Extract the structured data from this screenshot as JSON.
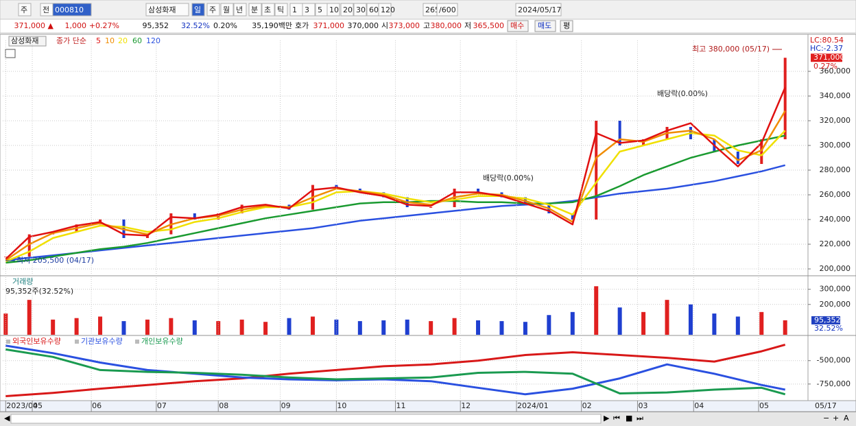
{
  "toolbar": {
    "items": [
      "주",
      "전",
      "000810",
      "삼성화재",
      "일",
      "주",
      "월",
      "년",
      "분",
      "초",
      "틱",
      "1",
      "3",
      "5",
      "10",
      "20",
      "30",
      "60",
      "120",
      "265",
      "/600",
      "2024/05/17"
    ]
  },
  "info_bar": {
    "items": [
      "371,000 ▲",
      "1,000",
      "+0.27%",
      "95,352",
      "32.52%",
      "0.20%",
      "35,190백만",
      "호가",
      "371,000",
      "370,000",
      "시",
      "373,000",
      "고",
      "380,000",
      "저",
      "365,500",
      "매수",
      "매도",
      "평"
    ]
  },
  "chart_data": [
    {
      "type": "line",
      "title": "삼성화재",
      "subtitle": "종가 단순",
      "x": [
        0,
        8,
        16,
        24,
        32,
        40,
        48,
        56,
        64,
        72,
        80,
        88,
        96,
        104,
        112,
        120,
        128,
        136,
        144,
        152,
        160,
        168,
        176,
        184,
        192,
        200,
        208,
        216,
        224,
        232,
        240,
        248,
        256,
        264
      ],
      "values": [
        210000,
        228000,
        230000,
        236000,
        240000,
        225000,
        228000,
        245000,
        240000,
        245000,
        252000,
        252000,
        248000,
        268000,
        265000,
        262000,
        258000,
        250000,
        250000,
        265000,
        262000,
        258000,
        252000,
        245000,
        240000,
        320000,
        300000,
        305000,
        315000,
        305000,
        295000,
        285000,
        305000,
        371000
      ],
      "up_color": "#e0201f",
      "down_color": "#1f3fd0",
      "xlim": [
        -1,
        265
      ],
      "ylim": [
        195000,
        385000
      ],
      "yticks": [
        {
          "value": 200000,
          "label": "200,000"
        },
        {
          "value": 220000,
          "label": "220,000"
        },
        {
          "value": 240000,
          "label": "240,000"
        },
        {
          "value": 260000,
          "label": "260,000"
        },
        {
          "value": 280000,
          "label": "280,000"
        },
        {
          "value": 300000,
          "label": "300,000"
        },
        {
          "value": 320000,
          "label": "320,000"
        },
        {
          "value": 340000,
          "label": "340,000"
        },
        {
          "value": 360000,
          "label": "360,000"
        }
      ],
      "grid": true,
      "series": [
        {
          "name": "5",
          "color": "#e01010",
          "values": [
            208000,
            226000,
            230000,
            235000,
            238000,
            228000,
            227000,
            242000,
            241000,
            244000,
            250000,
            252000,
            249000,
            264000,
            266000,
            262000,
            259000,
            252000,
            251000,
            262000,
            262000,
            259000,
            253000,
            247000,
            236000,
            310000,
            302000,
            304000,
            312000,
            318000,
            300000,
            283000,
            302000,
            347000
          ]
        },
        {
          "name": "10",
          "color": "#f08c00",
          "values": [
            207000,
            220000,
            229000,
            233000,
            237000,
            232000,
            228000,
            236000,
            241000,
            243000,
            248000,
            251000,
            250000,
            258000,
            265000,
            263000,
            260000,
            254000,
            252000,
            258000,
            261000,
            260000,
            255000,
            249000,
            238000,
            290000,
            305000,
            303000,
            310000,
            312000,
            305000,
            288000,
            296000,
            328000
          ]
        },
        {
          "name": "20",
          "color": "#f0e000",
          "values": [
            206000,
            214000,
            225000,
            230000,
            235000,
            234000,
            230000,
            232000,
            238000,
            241000,
            246000,
            250000,
            250000,
            254000,
            262000,
            263000,
            261000,
            257000,
            254000,
            256000,
            259000,
            259000,
            257000,
            252000,
            244000,
            270000,
            295000,
            300000,
            305000,
            310000,
            308000,
            296000,
            292000,
            312000
          ]
        },
        {
          "name": "60",
          "color": "#1a9a30",
          "values": [
            205000,
            207000,
            210000,
            213000,
            216000,
            218000,
            221000,
            225000,
            229000,
            233000,
            237000,
            241000,
            244000,
            247000,
            250000,
            253000,
            254000,
            254000,
            255000,
            255000,
            254000,
            254000,
            253000,
            253000,
            254000,
            259000,
            267000,
            276000,
            283000,
            290000,
            295000,
            300000,
            304000,
            308000
          ]
        },
        {
          "name": "120",
          "color": "#2a50e0",
          "values": [
            207000,
            209000,
            211000,
            213000,
            215000,
            217000,
            219000,
            221000,
            223000,
            225000,
            227000,
            229000,
            231000,
            233000,
            236000,
            239000,
            241000,
            243000,
            245000,
            247000,
            249000,
            251000,
            252000,
            253000,
            255000,
            258000,
            261000,
            263000,
            265000,
            268000,
            271000,
            275000,
            279000,
            284000
          ]
        }
      ],
      "annotations": [
        "최고 380,000 (05/17)",
        "최저 205,500 (04/17)",
        "배당락(0.00%)",
        "배당락(0.00%)"
      ],
      "lc_label": "LC:80.54",
      "hc_label": "HC:-2.37",
      "last_label": "371,000",
      "change_label": "0.27%"
    },
    {
      "type": "bar",
      "title": "거래량",
      "subtitle": "95,352주(32.52%)",
      "x": [
        0,
        8,
        16,
        24,
        32,
        40,
        48,
        56,
        64,
        72,
        80,
        88,
        96,
        104,
        112,
        120,
        128,
        136,
        144,
        152,
        160,
        168,
        176,
        184,
        192,
        200,
        208,
        216,
        224,
        232,
        240,
        248,
        256,
        264
      ],
      "values": [
        140000,
        230000,
        100000,
        110000,
        120000,
        90000,
        100000,
        110000,
        95000,
        90000,
        100000,
        85000,
        110000,
        120000,
        100000,
        90000,
        95000,
        100000,
        90000,
        110000,
        95000,
        90000,
        85000,
        130000,
        150000,
        320000,
        180000,
        150000,
        230000,
        200000,
        140000,
        120000,
        150000,
        95352
      ],
      "xlim": [
        -1,
        265
      ],
      "ylim": [
        0,
        380000
      ],
      "yticks": [
        {
          "value": 300000,
          "label": "300,000"
        },
        {
          "value": 200000,
          "label": "200,000"
        }
      ],
      "grid": true,
      "last_label": "95,352",
      "pct_label": "32.52%"
    },
    {
      "type": "line",
      "x": [
        0,
        16,
        32,
        48,
        64,
        80,
        96,
        112,
        128,
        144,
        160,
        176,
        192,
        208,
        224,
        240,
        256,
        264
      ],
      "xlim": [
        -1,
        265
      ],
      "ylim": [
        -920000,
        -260000
      ],
      "yticks": [
        {
          "value": -500000,
          "label": "-500,000"
        },
        {
          "value": -750000,
          "label": "-750,000"
        }
      ],
      "xticks": [
        {
          "value": 0,
          "label": "2023/04"
        },
        {
          "value": 9,
          "label": "05"
        },
        {
          "value": 29,
          "label": "06"
        },
        {
          "value": 51,
          "label": "07"
        },
        {
          "value": 72,
          "label": "08"
        },
        {
          "value": 93,
          "label": "09"
        },
        {
          "value": 112,
          "label": "10"
        },
        {
          "value": 132,
          "label": "11"
        },
        {
          "value": 154,
          "label": "12"
        },
        {
          "value": 173,
          "label": "2024/01"
        },
        {
          "value": 195,
          "label": "02"
        },
        {
          "value": 214,
          "label": "03"
        },
        {
          "value": 233,
          "label": "04"
        },
        {
          "value": 255,
          "label": "05"
        }
      ],
      "x_end_label": "05/17",
      "grid": true,
      "series": [
        {
          "name": "외국인보유수량",
          "color": "#d81818",
          "values": [
            -880000,
            -845000,
            -800000,
            -760000,
            -720000,
            -690000,
            -640000,
            -600000,
            -560000,
            -540000,
            -500000,
            -440000,
            -410000,
            -440000,
            -470000,
            -510000,
            -400000,
            -330000
          ]
        },
        {
          "name": "기관보유수량",
          "color": "#2a50e0",
          "values": [
            -340000,
            -420000,
            -520000,
            -600000,
            -640000,
            -680000,
            -700000,
            -710000,
            -700000,
            -720000,
            -790000,
            -860000,
            -800000,
            -690000,
            -540000,
            -640000,
            -760000,
            -810000
          ]
        },
        {
          "name": "개인보유수량",
          "color": "#1a9a50",
          "values": [
            -380000,
            -460000,
            -600000,
            -620000,
            -630000,
            -650000,
            -680000,
            -700000,
            -690000,
            -680000,
            -630000,
            -620000,
            -640000,
            -850000,
            -840000,
            -810000,
            -790000,
            -860000
          ]
        }
      ]
    }
  ]
}
